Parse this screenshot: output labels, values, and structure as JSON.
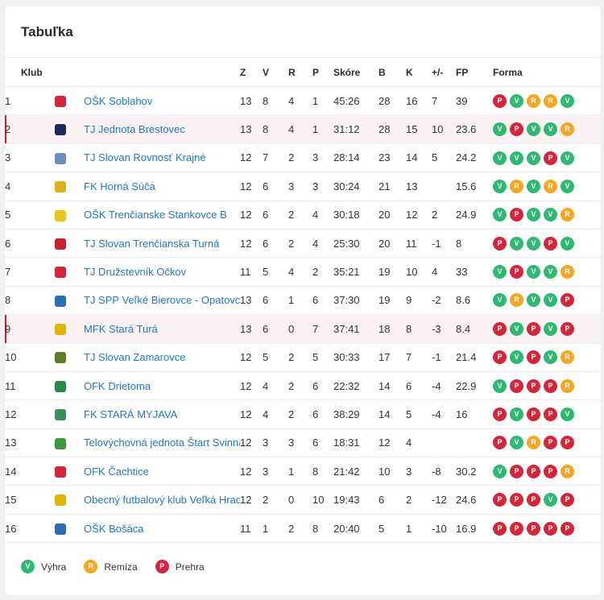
{
  "title": "Tabuľka",
  "headers": {
    "klub": "Klub",
    "z": "Z",
    "v": "V",
    "r": "R",
    "p": "P",
    "skore": "Skóre",
    "b": "B",
    "k": "K",
    "diff": "+/-",
    "fp": "FP",
    "forma": "Forma"
  },
  "colors": {
    "V": "#2eb872",
    "R": "#f5a623",
    "P": "#d3263a",
    "highlight": "#fbf2f3",
    "link": "#2178c4"
  },
  "rows": [
    {
      "pos": "1",
      "club": "OŠK Soblahov",
      "z": "13",
      "v": "8",
      "r": "4",
      "p": "1",
      "skore": "45:26",
      "b": "28",
      "k": "16",
      "diff": "7",
      "fp": "39",
      "forma": [
        "P",
        "V",
        "R",
        "R",
        "V"
      ],
      "logo": "#d3263a"
    },
    {
      "pos": "2",
      "club": "TJ Jednota Brestovec",
      "z": "13",
      "v": "8",
      "r": "4",
      "p": "1",
      "skore": "31:12",
      "b": "28",
      "k": "15",
      "diff": "10",
      "fp": "23.6",
      "forma": [
        "V",
        "P",
        "V",
        "V",
        "R"
      ],
      "logo": "#1b2d5a",
      "hl": true
    },
    {
      "pos": "3",
      "club": "TJ Slovan Rovnosť Krajné",
      "z": "12",
      "v": "7",
      "r": "2",
      "p": "3",
      "skore": "28:14",
      "b": "23",
      "k": "14",
      "diff": "5",
      "fp": "24.2",
      "forma": [
        "V",
        "V",
        "V",
        "P",
        "V"
      ],
      "logo": "#6a8fb8"
    },
    {
      "pos": "4",
      "club": "FK Horná Súča",
      "z": "12",
      "v": "6",
      "r": "3",
      "p": "3",
      "skore": "30:24",
      "b": "21",
      "k": "13",
      "diff": "",
      "fp": "15.6",
      "forma": [
        "V",
        "R",
        "V",
        "R",
        "V"
      ],
      "logo": "#d9b21c"
    },
    {
      "pos": "5",
      "club": "OŠK Trenčianske Stankovce B",
      "z": "12",
      "v": "6",
      "r": "2",
      "p": "4",
      "skore": "30:18",
      "b": "20",
      "k": "12",
      "diff": "2",
      "fp": "24.9",
      "forma": [
        "V",
        "P",
        "V",
        "V",
        "R"
      ],
      "logo": "#e8c51b"
    },
    {
      "pos": "6",
      "club": "TJ Slovan Trenčianska Turná",
      "z": "12",
      "v": "6",
      "r": "2",
      "p": "4",
      "skore": "25:30",
      "b": "20",
      "k": "11",
      "diff": "-1",
      "fp": "8",
      "forma": [
        "P",
        "V",
        "V",
        "P",
        "V"
      ],
      "logo": "#c8232d"
    },
    {
      "pos": "7",
      "club": "TJ Družstevník Očkov",
      "z": "11",
      "v": "5",
      "r": "4",
      "p": "2",
      "skore": "35:21",
      "b": "19",
      "k": "10",
      "diff": "4",
      "fp": "33",
      "forma": [
        "V",
        "P",
        "V",
        "V",
        "R"
      ],
      "logo": "#d3263a"
    },
    {
      "pos": "8",
      "club": "TJ SPP Veľké Bierovce - Opatovce",
      "z": "13",
      "v": "6",
      "r": "1",
      "p": "6",
      "skore": "37:30",
      "b": "19",
      "k": "9",
      "diff": "-2",
      "fp": "8.6",
      "forma": [
        "V",
        "R",
        "V",
        "V",
        "P"
      ],
      "logo": "#2d6bb5"
    },
    {
      "pos": "9",
      "club": "MFK Stará Turá",
      "z": "13",
      "v": "6",
      "r": "0",
      "p": "7",
      "skore": "37:41",
      "b": "18",
      "k": "8",
      "diff": "-3",
      "fp": "8.4",
      "forma": [
        "P",
        "V",
        "P",
        "V",
        "P"
      ],
      "logo": "#e0b400",
      "hl": true
    },
    {
      "pos": "10",
      "club": "TJ Slovan Zamarovce",
      "z": "12",
      "v": "5",
      "r": "2",
      "p": "5",
      "skore": "30:33",
      "b": "17",
      "k": "7",
      "diff": "-1",
      "fp": "21.4",
      "forma": [
        "P",
        "V",
        "P",
        "V",
        "R"
      ],
      "logo": "#5b7d2a"
    },
    {
      "pos": "11",
      "club": "OFK Drietoma",
      "z": "12",
      "v": "4",
      "r": "2",
      "p": "6",
      "skore": "22:32",
      "b": "14",
      "k": "6",
      "diff": "-4",
      "fp": "22.9",
      "forma": [
        "V",
        "P",
        "P",
        "P",
        "R"
      ],
      "logo": "#2a8a4a"
    },
    {
      "pos": "12",
      "club": "FK STARÁ MYJAVA",
      "z": "12",
      "v": "4",
      "r": "2",
      "p": "6",
      "skore": "38:29",
      "b": "14",
      "k": "5",
      "diff": "-4",
      "fp": "16",
      "forma": [
        "P",
        "V",
        "P",
        "P",
        "V"
      ],
      "logo": "#3c8f5a"
    },
    {
      "pos": "13",
      "club": "Telovýchovná jednota Štart Svinná",
      "z": "12",
      "v": "3",
      "r": "3",
      "p": "6",
      "skore": "18:31",
      "b": "12",
      "k": "4",
      "diff": "",
      "fp": "",
      "forma": [
        "P",
        "V",
        "R",
        "P",
        "P"
      ],
      "logo": "#3a9a3a"
    },
    {
      "pos": "14",
      "club": "OFK Čachtice",
      "z": "12",
      "v": "3",
      "r": "1",
      "p": "8",
      "skore": "21:42",
      "b": "10",
      "k": "3",
      "diff": "-8",
      "fp": "30.2",
      "forma": [
        "V",
        "P",
        "P",
        "P",
        "R"
      ],
      "logo": "#d3263a"
    },
    {
      "pos": "15",
      "club": "Obecný futbalový klub Veľká Hradná",
      "z": "12",
      "v": "2",
      "r": "0",
      "p": "10",
      "skore": "19:43",
      "b": "6",
      "k": "2",
      "diff": "-12",
      "fp": "24.6",
      "forma": [
        "P",
        "P",
        "P",
        "V",
        "P"
      ],
      "logo": "#e0b400"
    },
    {
      "pos": "16",
      "club": "OŠK Bošáca",
      "z": "11",
      "v": "1",
      "r": "2",
      "p": "8",
      "skore": "20:40",
      "b": "5",
      "k": "1",
      "diff": "-10",
      "fp": "16.9",
      "forma": [
        "P",
        "P",
        "P",
        "P",
        "P"
      ],
      "logo": "#2d6bb5"
    }
  ],
  "legend": [
    {
      "key": "V",
      "label": "Výhra"
    },
    {
      "key": "R",
      "label": "Remíza"
    },
    {
      "key": "P",
      "label": "Prehra"
    }
  ]
}
